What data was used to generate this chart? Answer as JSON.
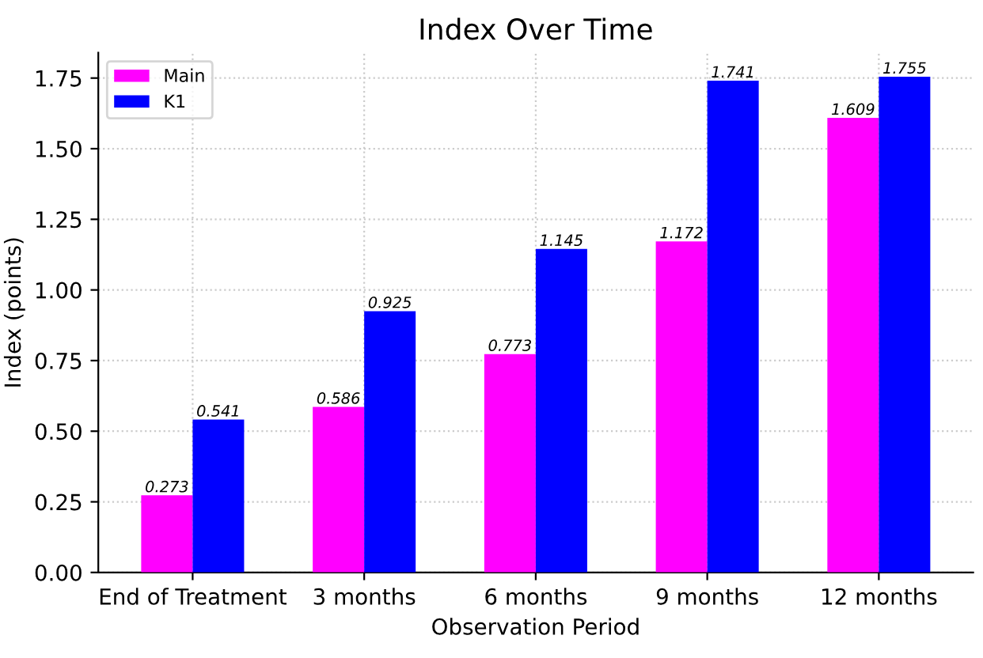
{
  "chart_data": {
    "type": "bar",
    "title": "Index Over Time",
    "xlabel": "Observation Period",
    "ylabel": "Index (points)",
    "categories": [
      "End of Treatment",
      "3 months",
      "6 months",
      "9 months",
      "12 months"
    ],
    "series": [
      {
        "name": "Main",
        "color": "#ff00ff",
        "values": [
          0.273,
          0.586,
          0.773,
          1.172,
          1.609
        ]
      },
      {
        "name": "K1",
        "color": "#0000ff",
        "values": [
          0.541,
          0.925,
          1.145,
          1.741,
          1.755
        ]
      }
    ],
    "ylim": [
      0,
      1.84
    ],
    "yticks": [
      {
        "value": 0,
        "label": "0.00"
      },
      {
        "value": 0.25,
        "label": "0.25"
      },
      {
        "value": 0.5,
        "label": "0.50"
      },
      {
        "value": 0.75,
        "label": "0.75"
      },
      {
        "value": 1,
        "label": "1.00"
      },
      {
        "value": 1.25,
        "label": "1.25"
      },
      {
        "value": 1.5,
        "label": "1.50"
      },
      {
        "value": 1.75,
        "label": "1.75"
      }
    ],
    "grid": true,
    "legend": "top left",
    "data_labels": true
  }
}
